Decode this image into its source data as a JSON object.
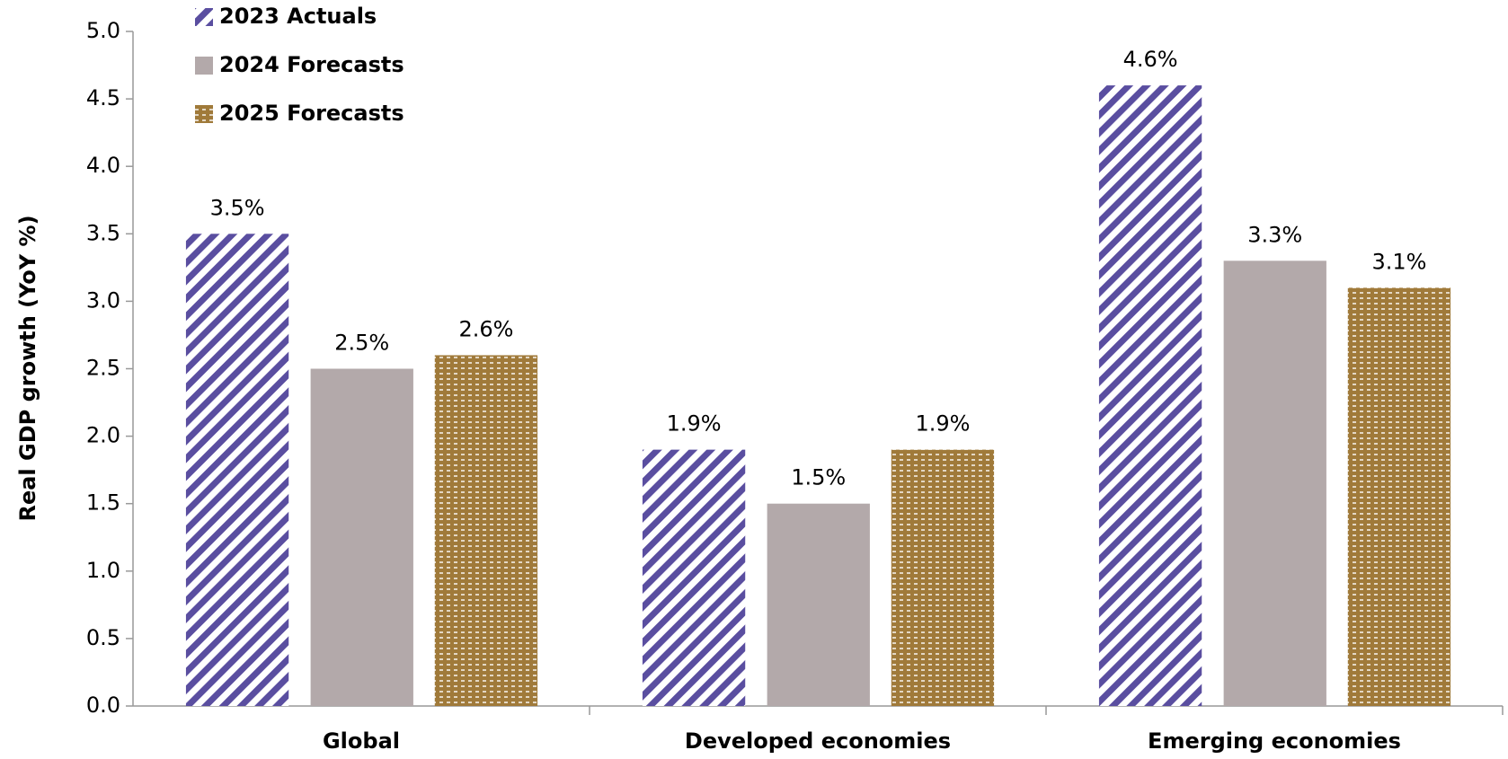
{
  "chart_data": {
    "type": "bar",
    "y_label": "Real GDP growth (YoY %)",
    "categories": [
      "Global",
      "Developed economies",
      "Emerging economies"
    ],
    "series": [
      {
        "name": "2023 Actuals",
        "color": "#5a4ea0",
        "pattern": "stripes",
        "values": [
          3.5,
          1.9,
          4.6
        ],
        "value_labels": [
          "3.5%",
          "1.9%",
          "4.6%"
        ]
      },
      {
        "name": "2024 Forecasts",
        "color": "#b3a9aa",
        "pattern": "solid",
        "values": [
          2.5,
          1.5,
          3.3
        ],
        "value_labels": [
          "2.5%",
          "1.5%",
          "3.3%"
        ]
      },
      {
        "name": "2025 Forecasts",
        "color": "#a07a3a",
        "pattern": "dots",
        "values": [
          2.6,
          1.9,
          3.1
        ],
        "value_labels": [
          "2.6%",
          "1.9%",
          "3.1%"
        ]
      }
    ],
    "ylim": [
      0,
      5
    ],
    "yticks": [
      {
        "value": 0,
        "label": "0.0"
      },
      0.5,
      {
        "value": 1,
        "label": "1.0"
      },
      1.5,
      {
        "value": 2,
        "label": "2.0"
      },
      2.5,
      {
        "value": 3,
        "label": "3.0"
      },
      3.5,
      {
        "value": 4,
        "label": "4.0"
      },
      4.5,
      {
        "value": 5,
        "label": "5.0"
      }
    ],
    "legend": "top-left"
  }
}
